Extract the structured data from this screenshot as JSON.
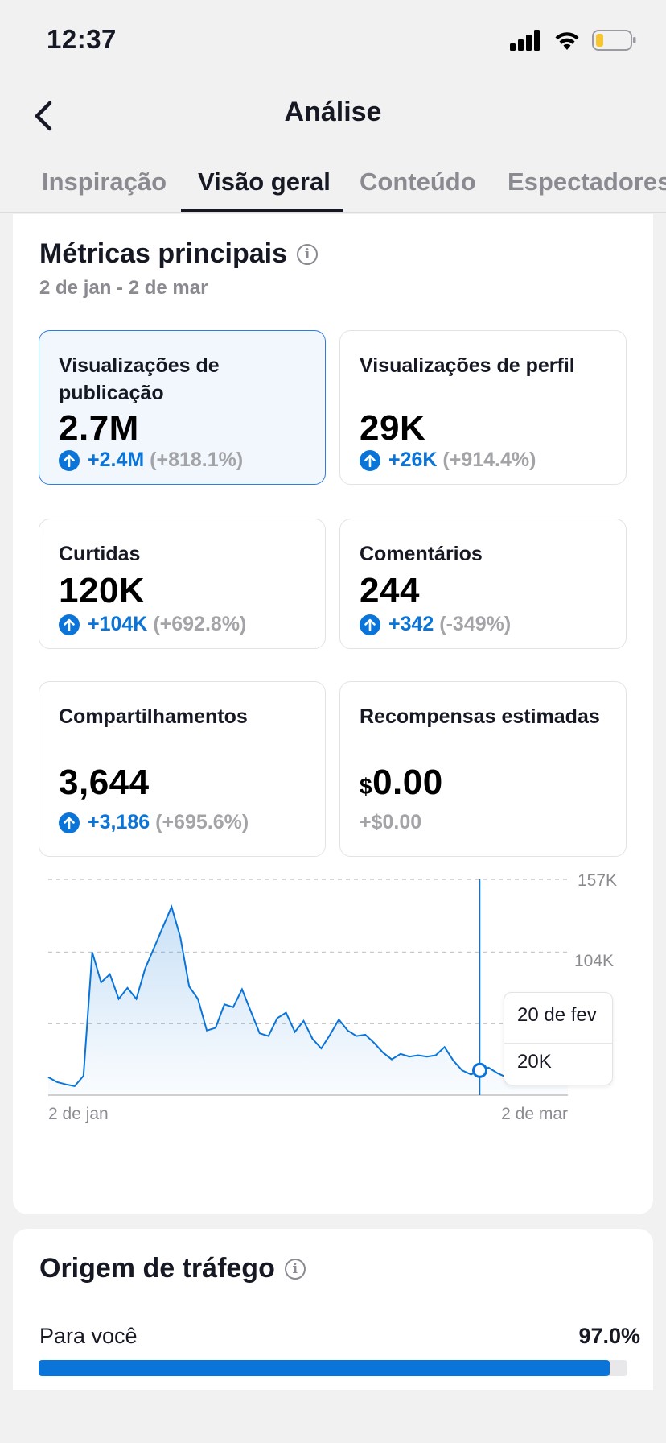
{
  "status_bar": {
    "time": "12:37"
  },
  "header": {
    "title": "Análise"
  },
  "tabs": [
    {
      "label": "Inspiração"
    },
    {
      "label": "Visão geral"
    },
    {
      "label": "Conteúdo"
    },
    {
      "label": "Espectadores"
    }
  ],
  "active_tab": "Visão geral",
  "metrics_section": {
    "title": "Métricas principais",
    "date_range": "2 de jan - 2 de mar",
    "cards": [
      {
        "label": "Visualizações de publicação",
        "value": "2.7M",
        "delta": "+2.4M",
        "pct": "(+818.1%)"
      },
      {
        "label": "Visualizações de perfil",
        "value": "29K",
        "delta": "+26K",
        "pct": "(+914.4%)"
      },
      {
        "label": "Curtidas",
        "value": "120K",
        "delta": "+104K",
        "pct": "(+692.8%)"
      },
      {
        "label": "Comentários",
        "value": "244",
        "delta": "+342",
        "pct": "(-349%)"
      },
      {
        "label": "Compartilhamentos",
        "value": "3,644",
        "delta": "+3,186",
        "pct": "(+695.6%)"
      },
      {
        "label": "Recompensas estimadas",
        "currency": "$",
        "value": "0.00",
        "change": "+$0.00"
      }
    ]
  },
  "chart_data": {
    "type": "area",
    "y_tick_labels": [
      "157K",
      "104K"
    ],
    "ylim": [
      0,
      157000
    ],
    "x_tick_labels": [
      "2 de jan",
      "2 de mar"
    ],
    "grid": true,
    "accent_color": "#0a74d8",
    "series": [
      {
        "values": [
          13000,
          9500,
          7800,
          6500,
          14000,
          104000,
          82000,
          88000,
          70000,
          78000,
          70000,
          92000,
          107000,
          122000,
          137000,
          115000,
          79000,
          70000,
          47000,
          49000,
          66000,
          64000,
          77000,
          61000,
          45000,
          43000,
          56000,
          60000,
          46000,
          54000,
          41000,
          34000,
          44000,
          55000,
          47000,
          43000,
          44000,
          38000,
          31000,
          26000,
          30000,
          28000,
          29000,
          28000,
          29000,
          35000,
          25000,
          18000,
          15000,
          18000,
          20000,
          16000,
          13000,
          11500,
          18000,
          18000,
          16000,
          15500,
          18500,
          20000
        ]
      }
    ],
    "highlight": {
      "label": "20 de fev",
      "value": "20K"
    }
  },
  "traffic_section": {
    "title": "Origem de tráfego",
    "sources": [
      {
        "label": "Para você",
        "value": "97.0%",
        "fraction": 0.97
      }
    ]
  }
}
